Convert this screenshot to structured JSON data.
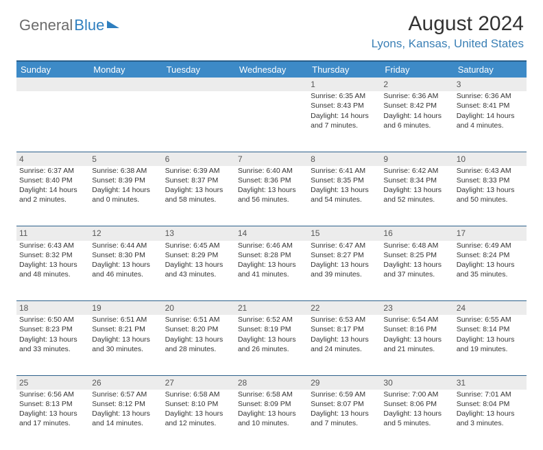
{
  "logo": {
    "part1": "General",
    "part2": "Blue"
  },
  "title": "August 2024",
  "location": "Lyons, Kansas, United States",
  "colors": {
    "header_bg": "#3d8ac7",
    "header_border": "#2a5f8a",
    "daynum_bg": "#ececec",
    "text": "#333333",
    "location_color": "#3a7fb5"
  },
  "day_headers": [
    "Sunday",
    "Monday",
    "Tuesday",
    "Wednesday",
    "Thursday",
    "Friday",
    "Saturday"
  ],
  "weeks": [
    [
      null,
      null,
      null,
      null,
      {
        "n": "1",
        "sr": "6:35 AM",
        "ss": "8:43 PM",
        "dl": "14 hours and 7 minutes."
      },
      {
        "n": "2",
        "sr": "6:36 AM",
        "ss": "8:42 PM",
        "dl": "14 hours and 6 minutes."
      },
      {
        "n": "3",
        "sr": "6:36 AM",
        "ss": "8:41 PM",
        "dl": "14 hours and 4 minutes."
      }
    ],
    [
      {
        "n": "4",
        "sr": "6:37 AM",
        "ss": "8:40 PM",
        "dl": "14 hours and 2 minutes."
      },
      {
        "n": "5",
        "sr": "6:38 AM",
        "ss": "8:39 PM",
        "dl": "14 hours and 0 minutes."
      },
      {
        "n": "6",
        "sr": "6:39 AM",
        "ss": "8:37 PM",
        "dl": "13 hours and 58 minutes."
      },
      {
        "n": "7",
        "sr": "6:40 AM",
        "ss": "8:36 PM",
        "dl": "13 hours and 56 minutes."
      },
      {
        "n": "8",
        "sr": "6:41 AM",
        "ss": "8:35 PM",
        "dl": "13 hours and 54 minutes."
      },
      {
        "n": "9",
        "sr": "6:42 AM",
        "ss": "8:34 PM",
        "dl": "13 hours and 52 minutes."
      },
      {
        "n": "10",
        "sr": "6:43 AM",
        "ss": "8:33 PM",
        "dl": "13 hours and 50 minutes."
      }
    ],
    [
      {
        "n": "11",
        "sr": "6:43 AM",
        "ss": "8:32 PM",
        "dl": "13 hours and 48 minutes."
      },
      {
        "n": "12",
        "sr": "6:44 AM",
        "ss": "8:30 PM",
        "dl": "13 hours and 46 minutes."
      },
      {
        "n": "13",
        "sr": "6:45 AM",
        "ss": "8:29 PM",
        "dl": "13 hours and 43 minutes."
      },
      {
        "n": "14",
        "sr": "6:46 AM",
        "ss": "8:28 PM",
        "dl": "13 hours and 41 minutes."
      },
      {
        "n": "15",
        "sr": "6:47 AM",
        "ss": "8:27 PM",
        "dl": "13 hours and 39 minutes."
      },
      {
        "n": "16",
        "sr": "6:48 AM",
        "ss": "8:25 PM",
        "dl": "13 hours and 37 minutes."
      },
      {
        "n": "17",
        "sr": "6:49 AM",
        "ss": "8:24 PM",
        "dl": "13 hours and 35 minutes."
      }
    ],
    [
      {
        "n": "18",
        "sr": "6:50 AM",
        "ss": "8:23 PM",
        "dl": "13 hours and 33 minutes."
      },
      {
        "n": "19",
        "sr": "6:51 AM",
        "ss": "8:21 PM",
        "dl": "13 hours and 30 minutes."
      },
      {
        "n": "20",
        "sr": "6:51 AM",
        "ss": "8:20 PM",
        "dl": "13 hours and 28 minutes."
      },
      {
        "n": "21",
        "sr": "6:52 AM",
        "ss": "8:19 PM",
        "dl": "13 hours and 26 minutes."
      },
      {
        "n": "22",
        "sr": "6:53 AM",
        "ss": "8:17 PM",
        "dl": "13 hours and 24 minutes."
      },
      {
        "n": "23",
        "sr": "6:54 AM",
        "ss": "8:16 PM",
        "dl": "13 hours and 21 minutes."
      },
      {
        "n": "24",
        "sr": "6:55 AM",
        "ss": "8:14 PM",
        "dl": "13 hours and 19 minutes."
      }
    ],
    [
      {
        "n": "25",
        "sr": "6:56 AM",
        "ss": "8:13 PM",
        "dl": "13 hours and 17 minutes."
      },
      {
        "n": "26",
        "sr": "6:57 AM",
        "ss": "8:12 PM",
        "dl": "13 hours and 14 minutes."
      },
      {
        "n": "27",
        "sr": "6:58 AM",
        "ss": "8:10 PM",
        "dl": "13 hours and 12 minutes."
      },
      {
        "n": "28",
        "sr": "6:58 AM",
        "ss": "8:09 PM",
        "dl": "13 hours and 10 minutes."
      },
      {
        "n": "29",
        "sr": "6:59 AM",
        "ss": "8:07 PM",
        "dl": "13 hours and 7 minutes."
      },
      {
        "n": "30",
        "sr": "7:00 AM",
        "ss": "8:06 PM",
        "dl": "13 hours and 5 minutes."
      },
      {
        "n": "31",
        "sr": "7:01 AM",
        "ss": "8:04 PM",
        "dl": "13 hours and 3 minutes."
      }
    ]
  ],
  "labels": {
    "sunrise": "Sunrise: ",
    "sunset": "Sunset: ",
    "daylight": "Daylight: "
  }
}
